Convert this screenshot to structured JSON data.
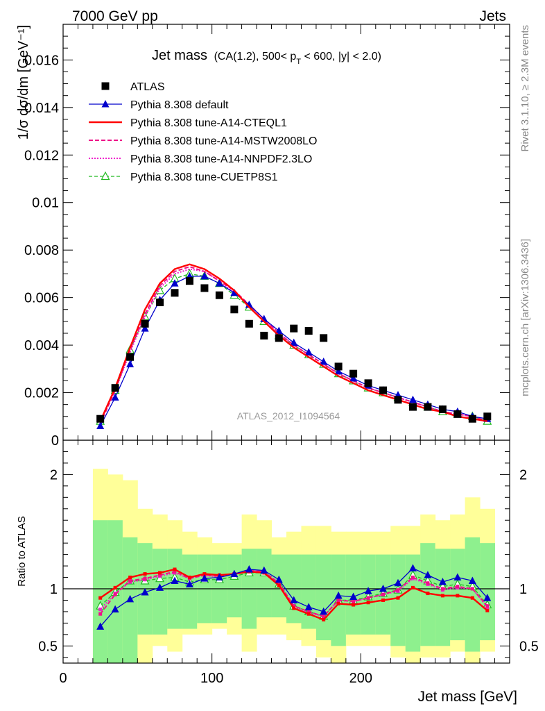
{
  "header": {
    "left_label": "7000 GeV pp",
    "right_label": "Jets"
  },
  "side_labels": {
    "rivet": "Rivet 3.1.10, ≥ 2.3M events",
    "mcplots": "mcplots.cern.ch [arXiv:1306.3436]"
  },
  "colors": {
    "atlas": "#000000",
    "default": "#0000cc",
    "cteql1": "#ff0000",
    "mstw": "#ee1188",
    "nnpdf": "#ee22cc",
    "cuetp": "#22bb22",
    "band_inner": "#8ef08e",
    "band_outer": "#ffff99"
  },
  "chart_data": [
    {
      "type": "scatter",
      "panel": "main",
      "title": "Jet mass",
      "title_detail": "(CA(1.2), 500< p_T < 600, |y| < 2.0)",
      "title_detail_parts": {
        "a": "(CA(1.2), 500< p",
        "sub": "T",
        "b": " < 600, |y| < 2.0)"
      },
      "ylabel": "1/σ dσ/dm [GeV⁻¹]",
      "watermark": "ATLAS_2012_I1094564",
      "xlim": [
        0,
        300
      ],
      "ylim": [
        0,
        0.0175
      ],
      "y_ticks": [
        {
          "v": 0,
          "label": "0"
        },
        {
          "v": 0.002,
          "label": "0.002"
        },
        {
          "v": 0.004,
          "label": "0.004"
        },
        {
          "v": 0.006,
          "label": "0.006"
        },
        {
          "v": 0.008,
          "label": "0.008"
        },
        {
          "v": 0.01,
          "label": "0.01"
        },
        {
          "v": 0.012,
          "label": "0.012"
        },
        {
          "v": 0.014,
          "label": "0.014"
        },
        {
          "v": 0.016,
          "label": "0.016"
        }
      ],
      "legend_position": "top-left",
      "x": [
        25,
        35,
        45,
        55,
        65,
        75,
        85,
        95,
        105,
        115,
        125,
        135,
        145,
        155,
        165,
        175,
        185,
        195,
        205,
        215,
        225,
        235,
        245,
        255,
        265,
        275,
        285
      ],
      "series": [
        {
          "key": "atlas",
          "name": "ATLAS",
          "marker": "square",
          "values": [
            0.0009,
            0.0022,
            0.0035,
            0.0049,
            0.0058,
            0.0062,
            0.0067,
            0.0064,
            0.0061,
            0.0055,
            0.0049,
            0.0044,
            0.0043,
            0.0047,
            0.0046,
            0.0043,
            0.0031,
            0.0028,
            0.0024,
            0.0021,
            0.0017,
            0.0014,
            0.0014,
            0.0013,
            0.0011,
            0.0009,
            0.001
          ]
        },
        {
          "key": "default",
          "name": "Pythia 8.308 default",
          "marker": "triangle",
          "values": [
            0.0006,
            0.0018,
            0.0032,
            0.0047,
            0.0059,
            0.0066,
            0.0069,
            0.0069,
            0.0066,
            0.0062,
            0.0057,
            0.0051,
            0.0046,
            0.0041,
            0.0037,
            0.0033,
            0.0029,
            0.0026,
            0.0023,
            0.0021,
            0.0019,
            0.0017,
            0.0015,
            0.0013,
            0.0012,
            0.001,
            0.0009
          ]
        },
        {
          "key": "cteql1",
          "name": "Pythia 8.308 tune-A14-CTEQL1",
          "marker": "none",
          "values": [
            0.0008,
            0.0022,
            0.0039,
            0.0055,
            0.0066,
            0.0072,
            0.0074,
            0.0072,
            0.0068,
            0.0063,
            0.0056,
            0.005,
            0.0044,
            0.0039,
            0.0035,
            0.0031,
            0.0027,
            0.0024,
            0.0021,
            0.0019,
            0.0017,
            0.0015,
            0.0013,
            0.0012,
            0.001,
            0.0009,
            0.0008
          ]
        },
        {
          "key": "mstw",
          "name": "Pythia 8.308 tune-A14-MSTW2008LO",
          "marker": "none",
          "values": [
            0.0007,
            0.0021,
            0.0038,
            0.0053,
            0.0065,
            0.0071,
            0.0073,
            0.0071,
            0.0067,
            0.0063,
            0.0057,
            0.0051,
            0.0045,
            0.004,
            0.0036,
            0.0032,
            0.0028,
            0.0025,
            0.0022,
            0.002,
            0.0018,
            0.0016,
            0.0014,
            0.0012,
            0.0011,
            0.001,
            0.0008
          ]
        },
        {
          "key": "nnpdf",
          "name": "Pythia 8.308 tune-A14-NNPDF2.3LO",
          "marker": "none",
          "values": [
            0.0008,
            0.0021,
            0.0037,
            0.0052,
            0.0064,
            0.007,
            0.0072,
            0.0071,
            0.0067,
            0.0062,
            0.0057,
            0.0051,
            0.0045,
            0.004,
            0.0036,
            0.0032,
            0.0028,
            0.0025,
            0.0022,
            0.002,
            0.0018,
            0.0016,
            0.0014,
            0.0012,
            0.0011,
            0.001,
            0.0008
          ]
        },
        {
          "key": "cuetp",
          "name": "Pythia 8.308 tune-CUETP8S1",
          "marker": "open-triangle",
          "values": [
            0.0008,
            0.0021,
            0.0038,
            0.0052,
            0.0063,
            0.0068,
            0.007,
            0.0069,
            0.0066,
            0.0061,
            0.0056,
            0.005,
            0.0044,
            0.004,
            0.0036,
            0.0032,
            0.0028,
            0.0025,
            0.0022,
            0.002,
            0.0018,
            0.0016,
            0.0014,
            0.0012,
            0.0011,
            0.001,
            0.0008
          ]
        }
      ]
    },
    {
      "type": "line",
      "panel": "ratio",
      "ylabel": "Ratio to ATLAS",
      "xlabel": "Jet mass [GeV]",
      "xlim": [
        0,
        300
      ],
      "ylim": [
        0.35,
        2.3
      ],
      "y_ticks": [
        {
          "v": 0.5,
          "label": "0.5"
        },
        {
          "v": 1,
          "label": "1"
        },
        {
          "v": 2,
          "label": "2"
        }
      ],
      "x_ticks": [
        {
          "v": 0,
          "label": "0"
        },
        {
          "v": 100,
          "label": "100"
        },
        {
          "v": 200,
          "label": "200"
        }
      ],
      "bins": [
        20,
        30,
        40,
        50,
        60,
        70,
        80,
        90,
        100,
        110,
        120,
        130,
        140,
        150,
        160,
        170,
        180,
        190,
        200,
        210,
        220,
        230,
        240,
        250,
        260,
        270,
        280,
        290
      ],
      "band_inner_lo": [
        0.35,
        0.35,
        0.35,
        0.6,
        0.6,
        0.65,
        0.65,
        0.7,
        0.7,
        0.75,
        0.65,
        0.75,
        0.75,
        0.7,
        0.65,
        0.55,
        0.5,
        0.6,
        0.6,
        0.6,
        0.5,
        0.45,
        0.5,
        0.5,
        0.55,
        0.45,
        0.55
      ],
      "band_inner_hi": [
        1.6,
        1.6,
        1.45,
        1.4,
        1.35,
        1.35,
        1.3,
        1.3,
        1.3,
        1.3,
        1.35,
        1.35,
        1.3,
        1.3,
        1.3,
        1.3,
        1.3,
        1.3,
        1.3,
        1.3,
        1.3,
        1.3,
        1.4,
        1.35,
        1.35,
        1.45,
        1.4
      ],
      "band_outer_lo": [
        0.35,
        0.35,
        0.35,
        0.35,
        0.5,
        0.45,
        0.6,
        0.6,
        0.65,
        0.6,
        0.45,
        0.6,
        0.6,
        0.55,
        0.5,
        0.4,
        0.35,
        0.5,
        0.5,
        0.5,
        0.4,
        0.35,
        0.4,
        0.4,
        0.45,
        0.35,
        0.45
      ],
      "band_outer_hi": [
        2.05,
        2.0,
        1.95,
        1.7,
        1.65,
        1.6,
        1.5,
        1.45,
        1.4,
        1.4,
        1.65,
        1.6,
        1.45,
        1.5,
        1.55,
        1.55,
        1.5,
        1.5,
        1.5,
        1.5,
        1.55,
        1.55,
        1.65,
        1.6,
        1.65,
        1.8,
        1.7
      ],
      "x": [
        25,
        35,
        45,
        55,
        65,
        75,
        85,
        95,
        105,
        115,
        125,
        135,
        145,
        155,
        165,
        175,
        185,
        195,
        205,
        215,
        225,
        235,
        245,
        255,
        265,
        275,
        285
      ],
      "series": [
        {
          "key": "default",
          "name": "Pythia 8.308 default",
          "marker": "triangle",
          "values": [
            0.67,
            0.82,
            0.91,
            0.97,
            1.01,
            1.07,
            1.04,
            1.09,
            1.1,
            1.13,
            1.17,
            1.16,
            1.08,
            0.9,
            0.84,
            0.8,
            0.94,
            0.93,
            0.98,
            1.0,
            1.05,
            1.18,
            1.12,
            1.06,
            1.1,
            1.07,
            0.92
          ]
        },
        {
          "key": "cteql1",
          "name": "Pythia 8.308 tune-A14-CTEQL1",
          "marker": "none",
          "values": [
            0.92,
            1.01,
            1.1,
            1.13,
            1.14,
            1.17,
            1.1,
            1.13,
            1.12,
            1.13,
            1.15,
            1.14,
            1.03,
            0.83,
            0.78,
            0.73,
            0.87,
            0.86,
            0.88,
            0.9,
            0.92,
            1.01,
            0.96,
            0.94,
            0.94,
            0.92,
            0.81
          ]
        },
        {
          "key": "mstw",
          "name": "Pythia 8.308 tune-A14-MSTW2008LO",
          "marker": "none",
          "values": [
            0.78,
            0.95,
            1.07,
            1.09,
            1.12,
            1.15,
            1.09,
            1.12,
            1.11,
            1.13,
            1.16,
            1.15,
            1.05,
            0.85,
            0.8,
            0.76,
            0.9,
            0.89,
            0.92,
            0.95,
            0.99,
            1.1,
            1.05,
            1.0,
            1.02,
            1.0,
            0.85
          ]
        },
        {
          "key": "nnpdf",
          "name": "Pythia 8.308 tune-A14-NNPDF2.3LO",
          "marker": "none",
          "values": [
            0.82,
            0.96,
            1.06,
            1.08,
            1.11,
            1.14,
            1.09,
            1.12,
            1.1,
            1.13,
            1.16,
            1.15,
            1.05,
            0.85,
            0.79,
            0.76,
            0.9,
            0.89,
            0.92,
            0.95,
            0.98,
            1.09,
            1.04,
            0.99,
            1.01,
            1.0,
            0.84
          ]
        },
        {
          "key": "cuetp",
          "name": "Pythia 8.308 tune-CUETP8S1",
          "marker": "open-triangle",
          "values": [
            0.85,
            0.97,
            1.07,
            1.07,
            1.09,
            1.1,
            1.06,
            1.08,
            1.08,
            1.11,
            1.14,
            1.14,
            1.04,
            0.85,
            0.8,
            0.76,
            0.9,
            0.9,
            0.93,
            0.96,
            0.99,
            1.12,
            1.07,
            1.02,
            1.04,
            1.02,
            0.86
          ]
        }
      ]
    }
  ]
}
